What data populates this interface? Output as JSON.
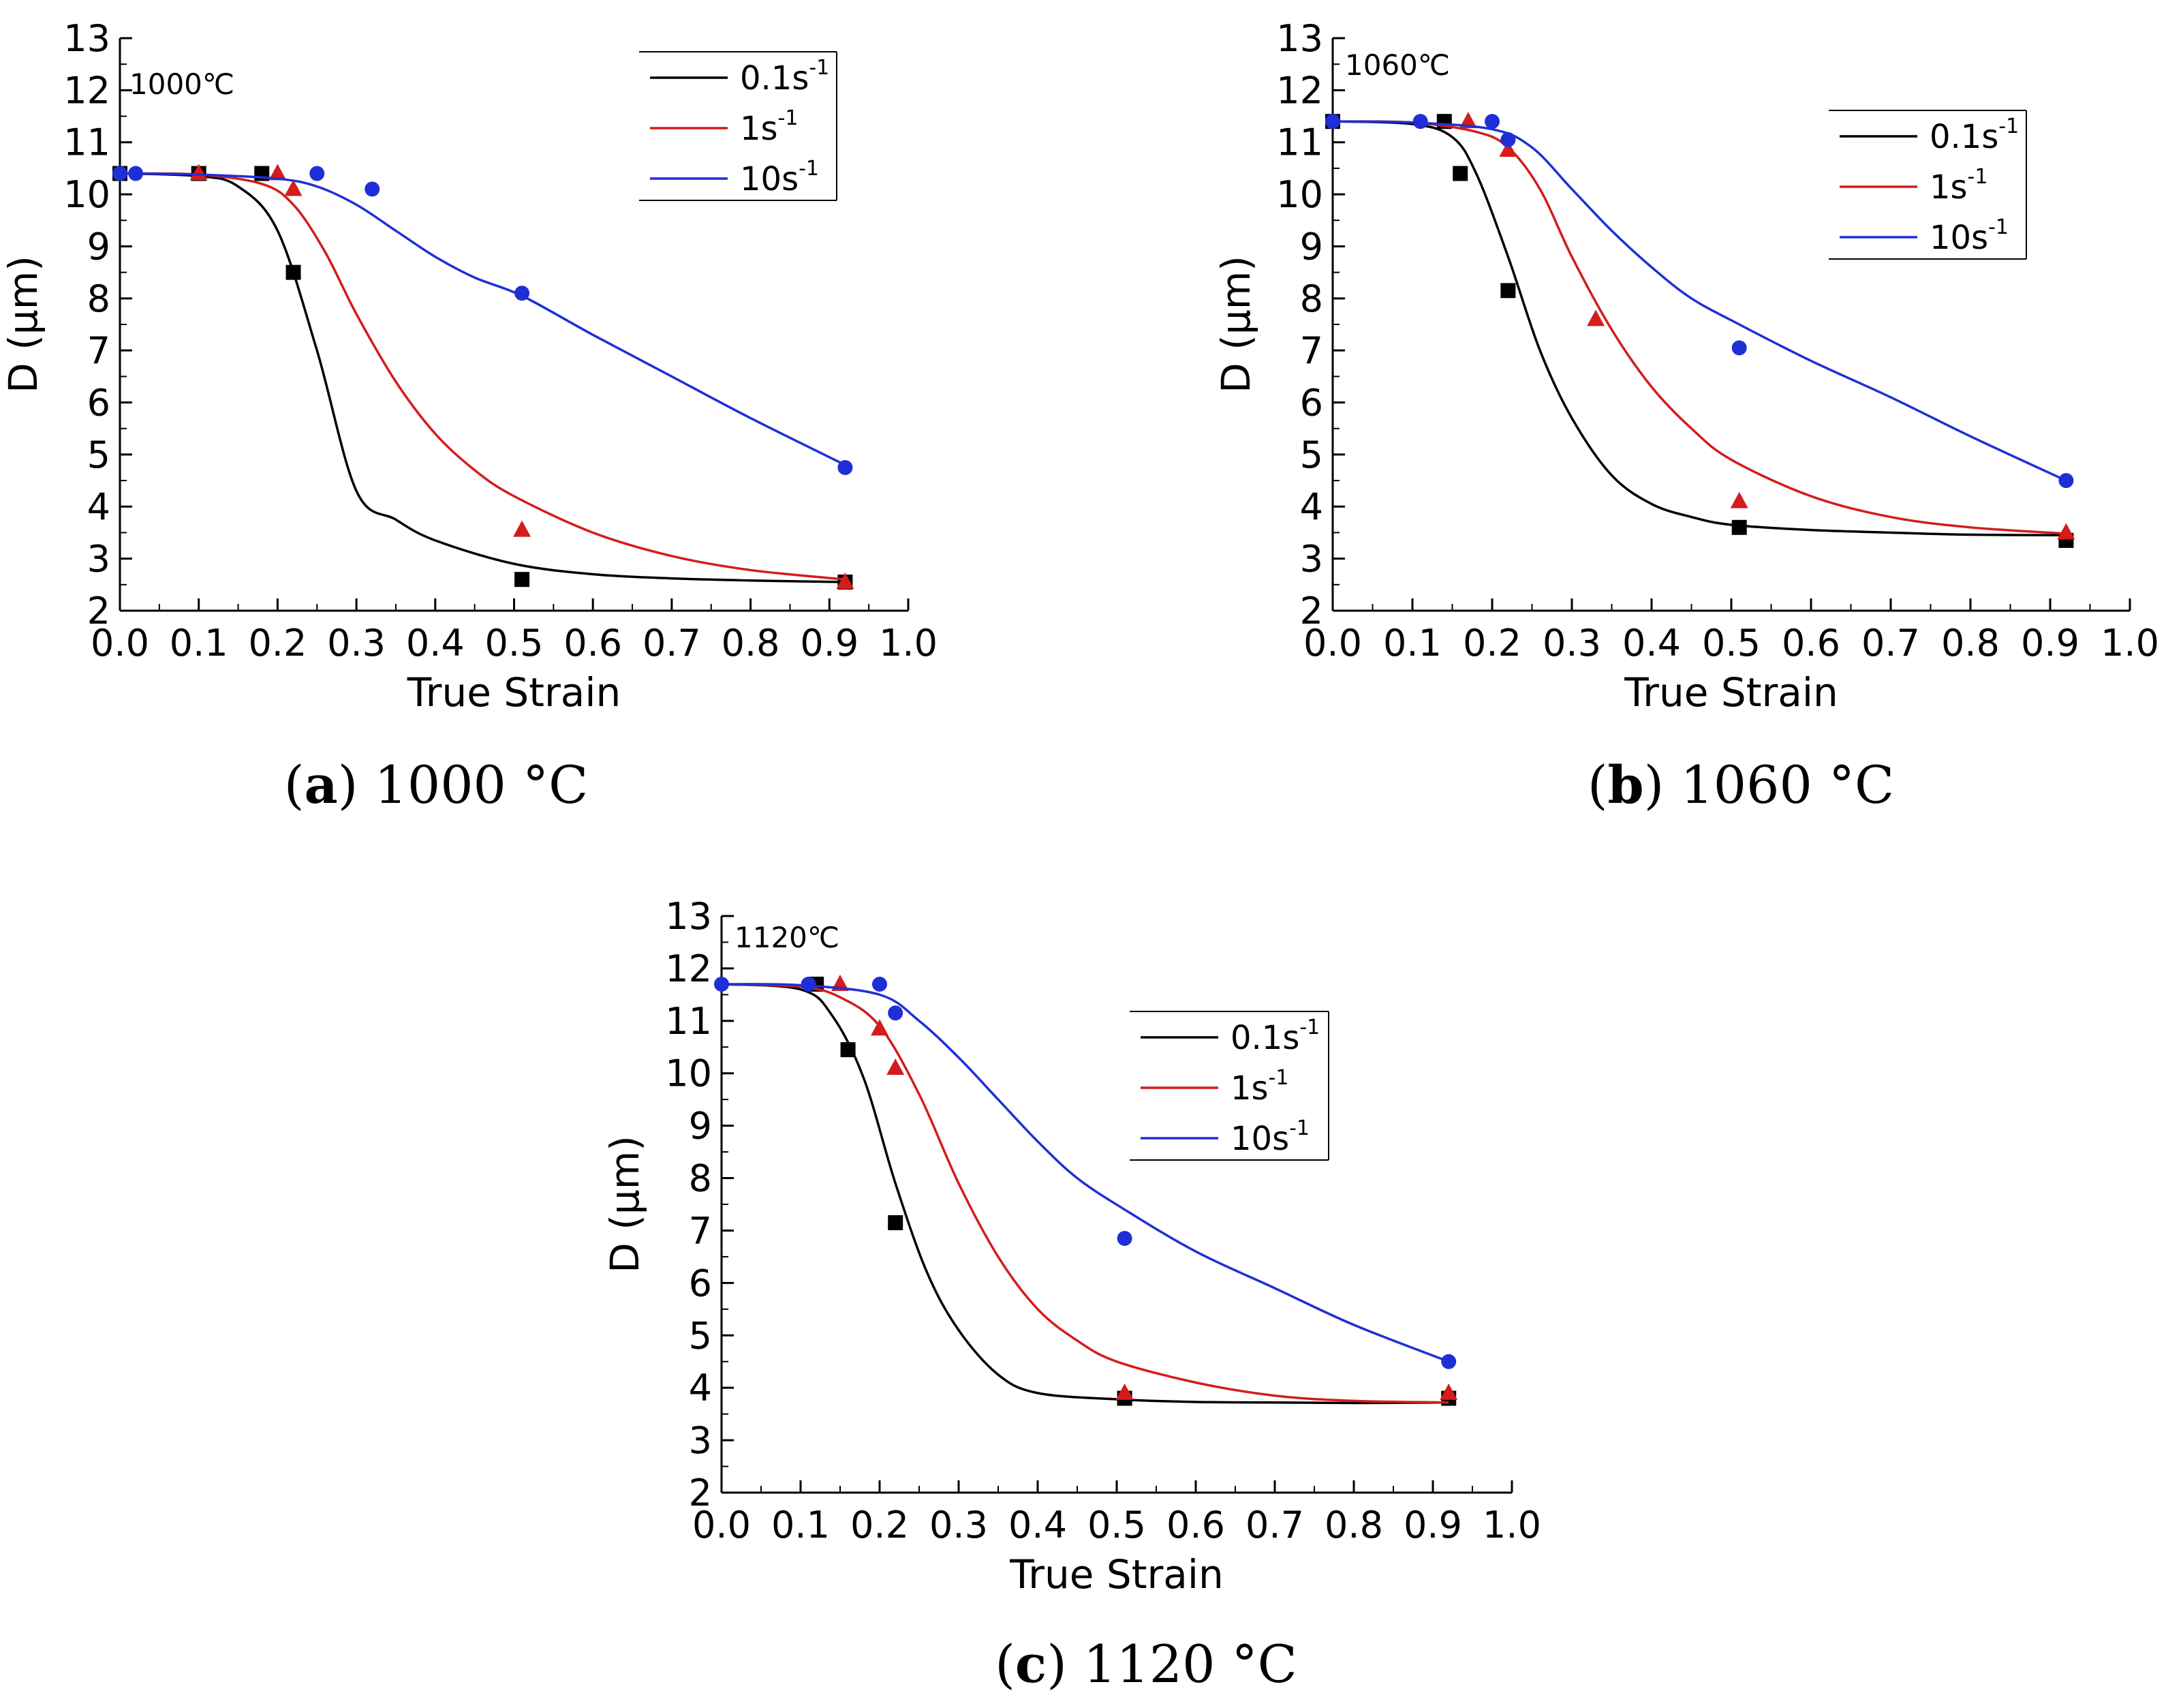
{
  "chart_data": [
    {
      "type": "line",
      "title": "1000℃",
      "caption_letter": "a",
      "caption_text": "1000 °C",
      "xlabel": "True Strain",
      "ylabel": "D (μm)",
      "xlim": [
        0.0,
        1.0
      ],
      "ylim": [
        2,
        13
      ],
      "xticks": [
        "0.0",
        "0.1",
        "0.2",
        "0.3",
        "0.4",
        "0.5",
        "0.6",
        "0.7",
        "0.8",
        "0.9",
        "1.0"
      ],
      "yticks": [
        "2",
        "3",
        "4",
        "5",
        "6",
        "7",
        "8",
        "9",
        "10",
        "11",
        "12",
        "13"
      ],
      "legend_position": "top-right",
      "series": [
        {
          "name": "0.1s",
          "superscript": "-1",
          "color": "#000000",
          "marker": "square",
          "points": [
            [
              0.0,
              10.4
            ],
            [
              0.1,
              10.4
            ],
            [
              0.18,
              10.4
            ],
            [
              0.22,
              8.5
            ],
            [
              0.51,
              2.6
            ],
            [
              0.92,
              2.55
            ]
          ],
          "curve": [
            [
              0.0,
              10.4
            ],
            [
              0.1,
              10.35
            ],
            [
              0.15,
              10.15
            ],
            [
              0.2,
              9.3
            ],
            [
              0.25,
              7.0
            ],
            [
              0.3,
              4.3
            ],
            [
              0.35,
              3.75
            ],
            [
              0.4,
              3.35
            ],
            [
              0.5,
              2.9
            ],
            [
              0.6,
              2.7
            ],
            [
              0.7,
              2.62
            ],
            [
              0.8,
              2.58
            ],
            [
              0.92,
              2.55
            ]
          ]
        },
        {
          "name": "1s",
          "superscript": "-1",
          "color": "#d41c1c",
          "marker": "triangle",
          "points": [
            [
              0.1,
              10.4
            ],
            [
              0.2,
              10.4
            ],
            [
              0.22,
              10.1
            ],
            [
              0.51,
              3.55
            ],
            [
              0.92,
              2.55
            ]
          ],
          "curve": [
            [
              0.0,
              10.4
            ],
            [
              0.1,
              10.38
            ],
            [
              0.18,
              10.2
            ],
            [
              0.22,
              9.8
            ],
            [
              0.26,
              8.9
            ],
            [
              0.3,
              7.7
            ],
            [
              0.35,
              6.4
            ],
            [
              0.4,
              5.4
            ],
            [
              0.45,
              4.7
            ],
            [
              0.5,
              4.2
            ],
            [
              0.6,
              3.5
            ],
            [
              0.7,
              3.05
            ],
            [
              0.8,
              2.78
            ],
            [
              0.92,
              2.6
            ]
          ]
        },
        {
          "name": "10s",
          "superscript": "-1",
          "color": "#1f2fd6",
          "marker": "circle",
          "points": [
            [
              0.0,
              10.4
            ],
            [
              0.02,
              10.4
            ],
            [
              0.25,
              10.4
            ],
            [
              0.32,
              10.1
            ],
            [
              0.51,
              8.1
            ],
            [
              0.92,
              4.75
            ]
          ],
          "curve": [
            [
              0.0,
              10.4
            ],
            [
              0.1,
              10.38
            ],
            [
              0.2,
              10.3
            ],
            [
              0.25,
              10.15
            ],
            [
              0.3,
              9.8
            ],
            [
              0.35,
              9.3
            ],
            [
              0.4,
              8.8
            ],
            [
              0.45,
              8.4
            ],
            [
              0.51,
              8.05
            ],
            [
              0.6,
              7.3
            ],
            [
              0.7,
              6.5
            ],
            [
              0.8,
              5.7
            ],
            [
              0.92,
              4.8
            ]
          ]
        }
      ]
    },
    {
      "type": "line",
      "title": "1060℃",
      "caption_letter": "b",
      "caption_text": "1060 °C",
      "xlabel": "True Strain",
      "ylabel": "D (μm)",
      "xlim": [
        0.0,
        1.0
      ],
      "ylim": [
        2,
        13
      ],
      "xticks": [
        "0.0",
        "0.1",
        "0.2",
        "0.3",
        "0.4",
        "0.5",
        "0.6",
        "0.7",
        "0.8",
        "0.9",
        "1.0"
      ],
      "yticks": [
        "2",
        "3",
        "4",
        "5",
        "6",
        "7",
        "8",
        "9",
        "10",
        "11",
        "12",
        "13"
      ],
      "legend_position": "top-right",
      "series": [
        {
          "name": "0.1s",
          "superscript": "-1",
          "color": "#000000",
          "marker": "square",
          "points": [
            [
              0.0,
              11.4
            ],
            [
              0.14,
              11.4
            ],
            [
              0.16,
              10.4
            ],
            [
              0.22,
              8.15
            ],
            [
              0.51,
              3.6
            ],
            [
              0.92,
              3.35
            ]
          ],
          "curve": [
            [
              0.0,
              11.4
            ],
            [
              0.1,
              11.35
            ],
            [
              0.15,
              11.1
            ],
            [
              0.18,
              10.4
            ],
            [
              0.22,
              8.8
            ],
            [
              0.26,
              7.0
            ],
            [
              0.3,
              5.7
            ],
            [
              0.35,
              4.6
            ],
            [
              0.4,
              4.05
            ],
            [
              0.45,
              3.8
            ],
            [
              0.5,
              3.65
            ],
            [
              0.6,
              3.55
            ],
            [
              0.7,
              3.5
            ],
            [
              0.8,
              3.46
            ],
            [
              0.92,
              3.45
            ]
          ]
        },
        {
          "name": "1s",
          "superscript": "-1",
          "color": "#d41c1c",
          "marker": "triangle",
          "points": [
            [
              0.17,
              11.4
            ],
            [
              0.22,
              10.85
            ],
            [
              0.33,
              7.6
            ],
            [
              0.51,
              4.1
            ],
            [
              0.92,
              3.5
            ]
          ],
          "curve": [
            [
              0.0,
              11.4
            ],
            [
              0.1,
              11.38
            ],
            [
              0.18,
              11.2
            ],
            [
              0.22,
              10.9
            ],
            [
              0.26,
              10.1
            ],
            [
              0.3,
              8.8
            ],
            [
              0.35,
              7.4
            ],
            [
              0.4,
              6.3
            ],
            [
              0.45,
              5.5
            ],
            [
              0.5,
              4.9
            ],
            [
              0.6,
              4.2
            ],
            [
              0.7,
              3.8
            ],
            [
              0.8,
              3.6
            ],
            [
              0.92,
              3.48
            ]
          ]
        },
        {
          "name": "10s",
          "superscript": "-1",
          "color": "#1f2fd6",
          "marker": "circle",
          "points": [
            [
              0.0,
              11.4
            ],
            [
              0.11,
              11.4
            ],
            [
              0.2,
              11.4
            ],
            [
              0.22,
              11.05
            ],
            [
              0.51,
              7.05
            ],
            [
              0.92,
              4.5
            ]
          ],
          "curve": [
            [
              0.0,
              11.4
            ],
            [
              0.1,
              11.38
            ],
            [
              0.2,
              11.25
            ],
            [
              0.25,
              10.9
            ],
            [
              0.3,
              10.1
            ],
            [
              0.35,
              9.3
            ],
            [
              0.4,
              8.6
            ],
            [
              0.45,
              8.0
            ],
            [
              0.51,
              7.5
            ],
            [
              0.6,
              6.8
            ],
            [
              0.7,
              6.1
            ],
            [
              0.8,
              5.35
            ],
            [
              0.92,
              4.5
            ]
          ]
        }
      ]
    },
    {
      "type": "line",
      "title": "1120℃",
      "caption_letter": "c",
      "caption_text": "1120 °C",
      "xlabel": "True Strain",
      "ylabel": "D (μm)",
      "xlim": [
        0.0,
        1.0
      ],
      "ylim": [
        2,
        13
      ],
      "xticks": [
        "0.0",
        "0.1",
        "0.2",
        "0.3",
        "0.4",
        "0.5",
        "0.6",
        "0.7",
        "0.8",
        "0.9",
        "1.0"
      ],
      "yticks": [
        "2",
        "3",
        "4",
        "5",
        "6",
        "7",
        "8",
        "9",
        "10",
        "11",
        "12",
        "13"
      ],
      "legend_position": "top-right",
      "series": [
        {
          "name": "0.1s",
          "superscript": "-1",
          "color": "#000000",
          "marker": "square",
          "points": [
            [
              0.12,
              11.7
            ],
            [
              0.16,
              10.45
            ],
            [
              0.22,
              7.15
            ],
            [
              0.51,
              3.8
            ],
            [
              0.92,
              3.8
            ]
          ],
          "curve": [
            [
              0.0,
              11.7
            ],
            [
              0.1,
              11.6
            ],
            [
              0.14,
              11.1
            ],
            [
              0.18,
              9.9
            ],
            [
              0.22,
              7.9
            ],
            [
              0.26,
              6.2
            ],
            [
              0.3,
              5.1
            ],
            [
              0.35,
              4.25
            ],
            [
              0.4,
              3.9
            ],
            [
              0.5,
              3.78
            ],
            [
              0.6,
              3.73
            ],
            [
              0.7,
              3.72
            ],
            [
              0.8,
              3.71
            ],
            [
              0.92,
              3.72
            ]
          ]
        },
        {
          "name": "1s",
          "superscript": "-1",
          "color": "#d41c1c",
          "marker": "triangle",
          "points": [
            [
              0.15,
              11.7
            ],
            [
              0.2,
              10.85
            ],
            [
              0.22,
              10.1
            ],
            [
              0.51,
              3.9
            ],
            [
              0.92,
              3.9
            ]
          ],
          "curve": [
            [
              0.0,
              11.7
            ],
            [
              0.1,
              11.65
            ],
            [
              0.15,
              11.45
            ],
            [
              0.2,
              10.9
            ],
            [
              0.25,
              9.6
            ],
            [
              0.3,
              7.9
            ],
            [
              0.35,
              6.5
            ],
            [
              0.4,
              5.5
            ],
            [
              0.45,
              4.9
            ],
            [
              0.5,
              4.5
            ],
            [
              0.6,
              4.1
            ],
            [
              0.7,
              3.85
            ],
            [
              0.8,
              3.75
            ],
            [
              0.92,
              3.72
            ]
          ]
        },
        {
          "name": "10s",
          "superscript": "-1",
          "color": "#1f2fd6",
          "marker": "circle",
          "points": [
            [
              0.0,
              11.7
            ],
            [
              0.11,
              11.7
            ],
            [
              0.2,
              11.7
            ],
            [
              0.22,
              11.15
            ],
            [
              0.51,
              6.85
            ],
            [
              0.92,
              4.5
            ]
          ],
          "curve": [
            [
              0.0,
              11.7
            ],
            [
              0.1,
              11.68
            ],
            [
              0.2,
              11.5
            ],
            [
              0.25,
              11.0
            ],
            [
              0.3,
              10.3
            ],
            [
              0.35,
              9.5
            ],
            [
              0.4,
              8.7
            ],
            [
              0.45,
              8.0
            ],
            [
              0.51,
              7.4
            ],
            [
              0.6,
              6.6
            ],
            [
              0.7,
              5.9
            ],
            [
              0.8,
              5.2
            ],
            [
              0.92,
              4.5
            ]
          ]
        }
      ]
    }
  ]
}
